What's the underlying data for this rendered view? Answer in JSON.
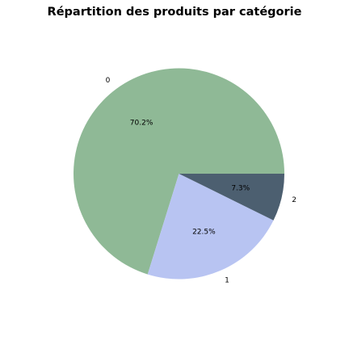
{
  "chart_data": {
    "type": "pie",
    "title": "Répartition des produits par catégorie",
    "categories": [
      "0",
      "1",
      "2"
    ],
    "values": [
      70.2,
      22.5,
      7.3
    ],
    "percent_labels": [
      "70.2%",
      "22.5%",
      "7.3%"
    ],
    "colors": [
      "#8fb996",
      "#b8c4f2",
      "#4c5f70"
    ],
    "start_angle_deg": 0,
    "direction": "counterclockwise",
    "legend": "none"
  }
}
